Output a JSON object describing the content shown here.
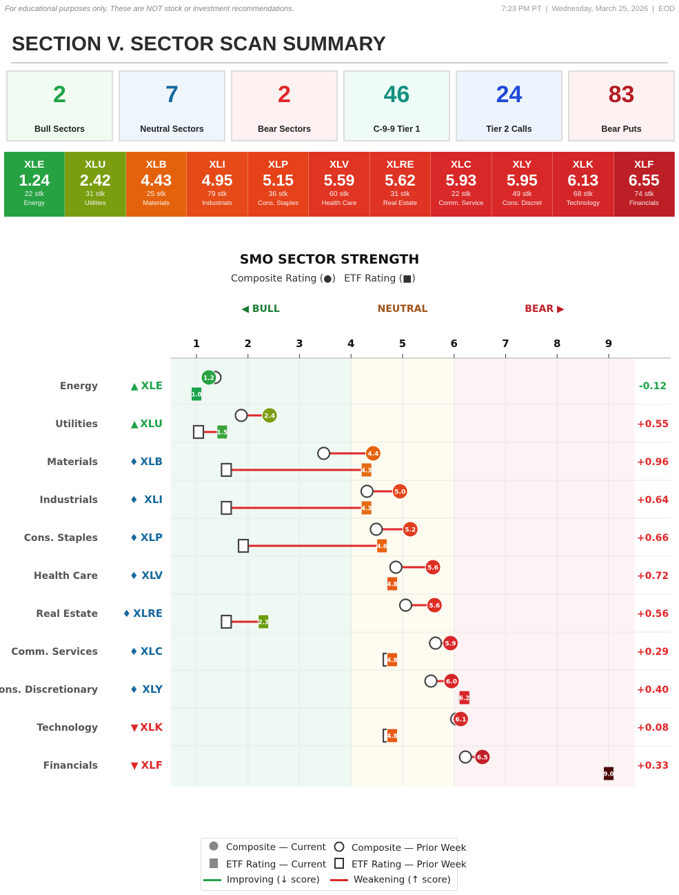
{
  "header": {
    "disclaimer": "For educational purposes only. These are NOT stock or investment recommendations.",
    "timestamp": "7:23 PM PT  |  Wednesday, March 25, 2026  |  EOD"
  },
  "title": "SECTION V. SECTOR SCAN SUMMARY",
  "cards": [
    {
      "value": "2",
      "label": "Bull Sectors",
      "color": "#1ea34a",
      "bg": "#f0fbf2"
    },
    {
      "value": "7",
      "label": "Neutral Sectors",
      "color": "#17699e",
      "bg": "#eef5fc"
    },
    {
      "value": "2",
      "label": "Bear Sectors",
      "color": "#e0272a",
      "bg": "#fdf1f1"
    },
    {
      "value": "46",
      "label": "C-9-9 Tier 1",
      "color": "#14907f",
      "bg": "#eefbf7"
    },
    {
      "value": "24",
      "label": "Tier 2 Calls",
      "color": "#1f49d6",
      "bg": "#eef4fd"
    },
    {
      "value": "83",
      "label": "Bear Puts",
      "color": "#b31c22",
      "bg": "#fdf1f1"
    }
  ],
  "tiles": [
    {
      "ticker": "XLE",
      "score": "1.24",
      "stocks": "22 stk",
      "name": "Energy",
      "color": "#27a243"
    },
    {
      "ticker": "XLU",
      "score": "2.42",
      "stocks": "31 stk",
      "name": "Utilities",
      "color": "#7a9e10"
    },
    {
      "ticker": "XLB",
      "score": "4.43",
      "stocks": "25 stk",
      "name": "Materials",
      "color": "#e5620c"
    },
    {
      "ticker": "XLI",
      "score": "4.95",
      "stocks": "79 stk",
      "name": "Industrials",
      "color": "#e54a18"
    },
    {
      "ticker": "XLP",
      "score": "5.15",
      "stocks": "36 stk",
      "name": "Cons. Staples",
      "color": "#e5421a"
    },
    {
      "ticker": "XLV",
      "score": "5.59",
      "stocks": "60 stk",
      "name": "Health Care",
      "color": "#e03522"
    },
    {
      "ticker": "XLRE",
      "score": "5.62",
      "stocks": "31 stk",
      "name": "Real Estate",
      "color": "#df3324"
    },
    {
      "ticker": "XLC",
      "score": "5.93",
      "stocks": "22 stk",
      "name": "Comm. Service",
      "color": "#d92828"
    },
    {
      "ticker": "XLY",
      "score": "5.95",
      "stocks": "49 stk",
      "name": "Cons. Discret",
      "color": "#d92828"
    },
    {
      "ticker": "XLK",
      "score": "6.13",
      "stocks": "68 stk",
      "name": "Technology",
      "color": "#d42628"
    },
    {
      "ticker": "XLF",
      "score": "6.55",
      "stocks": "74 stk",
      "name": "Financials",
      "color": "#bd1f26"
    }
  ],
  "chart_data": {
    "type": "dot-plot",
    "title": "SMO SECTOR STRENGTH",
    "subtitle_composite": "Composite Rating (●)",
    "subtitle_etf": "ETF Rating (■)",
    "zones": {
      "bull": "◀ BULL",
      "neutral": "NEUTRAL",
      "bear": "BEAR ▶"
    },
    "x_ticks": [
      1,
      2,
      3,
      4,
      5,
      6,
      7,
      8,
      9
    ],
    "xlim": [
      0.5,
      9.5
    ],
    "zone_bounds": [
      4,
      6
    ],
    "sectors": [
      {
        "name": "Energy",
        "ticker": "XLE",
        "trend": "▲",
        "trend_color": "#1ea34a",
        "composite": 1.24,
        "composite_label": "1.2",
        "composite_color": "#27a243",
        "composite_prior": 1.36,
        "etf": 1.0,
        "etf_label": "1.0",
        "etf_color": "#18a34a",
        "etf_prior": 1.0,
        "delta": "-0.12",
        "delta_color": "#1ea34a"
      },
      {
        "name": "Utilities",
        "ticker": "XLU",
        "trend": "▲",
        "trend_color": "#1ea34a",
        "composite": 2.42,
        "composite_label": "2.4",
        "composite_color": "#7a9e10",
        "composite_prior": 1.87,
        "etf": 1.5,
        "etf_label": "1.5",
        "etf_color": "#3aa53a",
        "etf_prior": 1.04,
        "delta": "+0.55",
        "delta_color": "#e0272a"
      },
      {
        "name": "Materials",
        "ticker": "XLB",
        "trend": "♦",
        "trend_color": "#17699e",
        "composite": 4.43,
        "composite_label": "4.4",
        "composite_color": "#e5620c",
        "composite_prior": 3.47,
        "etf": 4.3,
        "etf_label": "4.3",
        "etf_color": "#e56a12",
        "etf_prior": 1.58,
        "delta": "+0.96",
        "delta_color": "#e0272a"
      },
      {
        "name": "Industrials",
        "ticker": "XLI",
        "trend": "♦",
        "trend_color": "#17699e",
        "composite": 4.95,
        "composite_label": "5.0",
        "composite_color": "#e5461c",
        "composite_prior": 4.31,
        "etf": 4.3,
        "etf_label": "4.3",
        "etf_color": "#e56a12",
        "etf_prior": 1.58,
        "delta": "+0.64",
        "delta_color": "#e0272a"
      },
      {
        "name": "Cons. Staples",
        "ticker": "XLP",
        "trend": "♦",
        "trend_color": "#17699e",
        "composite": 5.15,
        "composite_label": "5.2",
        "composite_color": "#e03c1e",
        "composite_prior": 4.49,
        "etf": 4.6,
        "etf_label": "4.6",
        "etf_color": "#e8620e",
        "etf_prior": 1.91,
        "delta": "+0.66",
        "delta_color": "#e0272a"
      },
      {
        "name": "Health Care",
        "ticker": "XLV",
        "trend": "♦",
        "trend_color": "#17699e",
        "composite": 5.59,
        "composite_label": "5.6",
        "composite_color": "#dd2e24",
        "composite_prior": 4.87,
        "etf": 4.8,
        "etf_label": "4.8",
        "etf_color": "#e85a14",
        "etf_prior": 4.8,
        "delta": "+0.72",
        "delta_color": "#e0272a"
      },
      {
        "name": "Real Estate",
        "ticker": "XLRE",
        "trend": "♦",
        "trend_color": "#17699e",
        "composite": 5.62,
        "composite_label": "5.6",
        "composite_color": "#dd2e24",
        "composite_prior": 5.06,
        "etf": 2.3,
        "etf_label": "2.3",
        "etf_color": "#6a9e10",
        "etf_prior": 1.58,
        "delta": "+0.56",
        "delta_color": "#e0272a"
      },
      {
        "name": "Comm. Services",
        "ticker": "XLC",
        "trend": "♦",
        "trend_color": "#17699e",
        "composite": 5.93,
        "composite_label": "5.9",
        "composite_color": "#d9262a",
        "composite_prior": 5.64,
        "etf": 4.8,
        "etf_label": "4.8",
        "etf_color": "#e85a14",
        "etf_prior": 4.72,
        "delta": "+0.29",
        "delta_color": "#e0272a"
      },
      {
        "name": "Cons. Discretionary",
        "ticker": "XLY",
        "trend": "♦",
        "trend_color": "#17699e",
        "composite": 5.95,
        "composite_label": "6.0",
        "composite_color": "#d8262a",
        "composite_prior": 5.55,
        "etf": 6.2,
        "etf_label": "6.2",
        "etf_color": "#d8262a",
        "etf_prior": 6.2,
        "delta": "+0.40",
        "delta_color": "#e0272a"
      },
      {
        "name": "Technology",
        "ticker": "XLK",
        "trend": "▼",
        "trend_color": "#e0272a",
        "composite": 6.13,
        "composite_label": "6.1",
        "composite_color": "#d62a2a",
        "composite_prior": 6.05,
        "etf": 4.8,
        "etf_label": "4.8",
        "etf_color": "#e85a14",
        "etf_prior": 4.72,
        "delta": "+0.08",
        "delta_color": "#e0272a"
      },
      {
        "name": "Financials",
        "ticker": "XLF",
        "trend": "▼",
        "trend_color": "#e0272a",
        "composite": 6.55,
        "composite_label": "6.5",
        "composite_color": "#c0202a",
        "composite_prior": 6.22,
        "etf": 9.0,
        "etf_label": "9.0",
        "etf_color": "#4a0a0a",
        "etf_prior": 9.0,
        "delta": "+0.33",
        "delta_color": "#e0272a"
      }
    ]
  },
  "legend": {
    "composite_current": "Composite — Current",
    "composite_prior": "Composite — Prior Week",
    "etf_current": "ETF Rating — Current",
    "etf_prior": "ETF Rating — Prior Week",
    "improving": "Improving (↓ score)",
    "weakening": "Weakening (↑ score)"
  }
}
